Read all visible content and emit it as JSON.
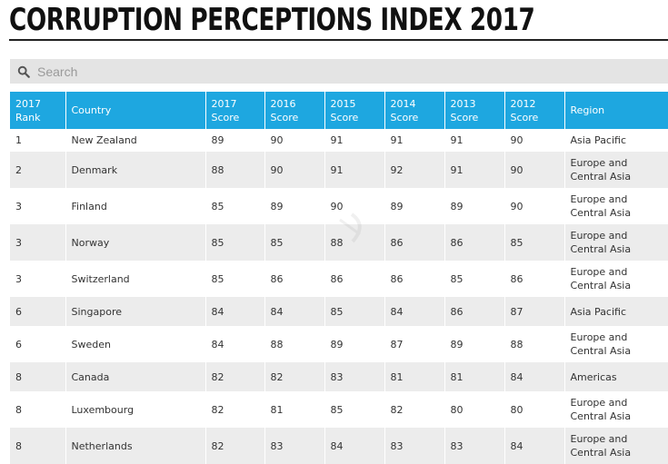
{
  "page": {
    "title": "CORRUPTION PERCEPTIONS INDEX 2017"
  },
  "search": {
    "placeholder": "Search",
    "icon": "search-icon"
  },
  "table": {
    "headers": [
      "2017 Rank",
      "Country",
      "2017 Score",
      "2016 Score",
      "2015 Score",
      "2014 Score",
      "2013 Score",
      "2012 Score",
      "Region"
    ],
    "rows": [
      [
        "1",
        "New Zealand",
        "89",
        "90",
        "91",
        "91",
        "91",
        "90",
        "Asia Pacific"
      ],
      [
        "2",
        "Denmark",
        "88",
        "90",
        "91",
        "92",
        "91",
        "90",
        "Europe and Central Asia"
      ],
      [
        "3",
        "Finland",
        "85",
        "89",
        "90",
        "89",
        "89",
        "90",
        "Europe and Central Asia"
      ],
      [
        "3",
        "Norway",
        "85",
        "85",
        "88",
        "86",
        "86",
        "85",
        "Europe and Central Asia"
      ],
      [
        "3",
        "Switzerland",
        "85",
        "86",
        "86",
        "86",
        "85",
        "86",
        "Europe and Central Asia"
      ],
      [
        "6",
        "Singapore",
        "84",
        "84",
        "85",
        "84",
        "86",
        "87",
        "Asia Pacific"
      ],
      [
        "6",
        "Sweden",
        "84",
        "88",
        "89",
        "87",
        "89",
        "88",
        "Europe and Central Asia"
      ],
      [
        "8",
        "Canada",
        "82",
        "82",
        "83",
        "81",
        "81",
        "84",
        "Americas"
      ],
      [
        "8",
        "Luxembourg",
        "82",
        "81",
        "85",
        "82",
        "80",
        "80",
        "Europe and Central Asia"
      ],
      [
        "8",
        "Netherlands",
        "82",
        "83",
        "84",
        "83",
        "83",
        "84",
        "Europe and Central Asia"
      ]
    ]
  },
  "colors": {
    "header_bg": "#1ea7e0",
    "stripe": "#ececec",
    "search_bg": "#e4e4e4"
  }
}
